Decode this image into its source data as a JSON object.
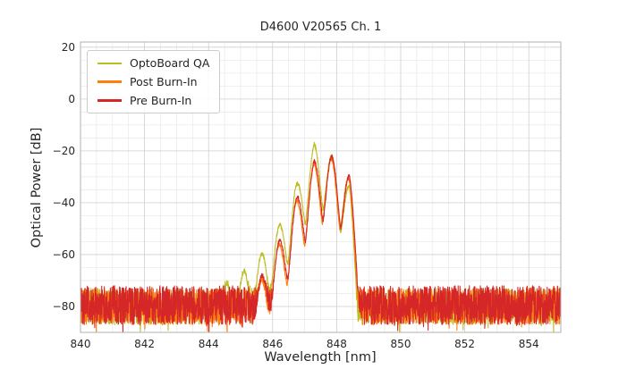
{
  "chart_data": {
    "type": "line",
    "title": "D4600 V20565 Ch. 1",
    "xlabel": "Wavelength [nm]",
    "ylabel": "Optical Power [dB]",
    "xlim": [
      840,
      855
    ],
    "ylim": [
      -90,
      22
    ],
    "xticks": [
      840,
      842,
      844,
      846,
      848,
      850,
      852,
      854
    ],
    "yticks": [
      20,
      0,
      -20,
      -40,
      -60,
      -80
    ],
    "grid": {
      "show_major": true,
      "show_minor": true,
      "x_minor_step": 0.5,
      "y_minor_step": 5
    },
    "legend": {
      "position": "upper-left",
      "entries": [
        "OptoBoard QA",
        "Post Burn-In",
        "Pre Burn-In"
      ]
    },
    "series": [
      {
        "name": "OptoBoard QA",
        "color": "#bcbd22",
        "noise_floor_db": {
          "mean": -80,
          "peak_to_peak": 14
        },
        "mode_spacing_nm": 0.55,
        "mode_phase_nm": 847.3,
        "notch_depth_db": 23,
        "peak_power_db": -17.5,
        "peak_wavelength_nm": 847.3,
        "envelope_points": [
          [
            843.9,
            -82
          ],
          [
            844.55,
            -72
          ],
          [
            845.1,
            -67
          ],
          [
            845.65,
            -60
          ],
          [
            846.2,
            -49
          ],
          [
            846.75,
            -33
          ],
          [
            847.3,
            -17.5
          ],
          [
            847.85,
            -22
          ],
          [
            848.4,
            -34
          ],
          [
            848.6,
            -55
          ],
          [
            848.72,
            -82
          ]
        ]
      },
      {
        "name": "Post Burn-In",
        "color": "#ff7f0e",
        "noise_floor_db": {
          "mean": -80,
          "peak_to_peak": 14
        },
        "mode_spacing_nm": 0.55,
        "mode_phase_nm": 847.28,
        "notch_depth_db": 24,
        "peak_power_db": -23,
        "peak_wavelength_nm": 847.85,
        "envelope_points": [
          [
            845.2,
            -82
          ],
          [
            845.65,
            -70
          ],
          [
            846.2,
            -56
          ],
          [
            846.75,
            -39
          ],
          [
            847.3,
            -25
          ],
          [
            847.85,
            -23
          ],
          [
            848.4,
            -31
          ],
          [
            848.62,
            -48
          ],
          [
            848.75,
            -72
          ],
          [
            848.82,
            -85
          ]
        ]
      },
      {
        "name": "Pre Burn-In",
        "color": "#d62728",
        "noise_floor_db": {
          "mean": -79.5,
          "peak_to_peak": 15
        },
        "mode_spacing_nm": 0.55,
        "mode_phase_nm": 847.3,
        "notch_depth_db": 24,
        "peak_power_db": -22,
        "peak_wavelength_nm": 847.85,
        "envelope_points": [
          [
            845.2,
            -82
          ],
          [
            845.65,
            -69
          ],
          [
            846.2,
            -55
          ],
          [
            846.75,
            -38
          ],
          [
            847.3,
            -24
          ],
          [
            847.85,
            -22
          ],
          [
            848.4,
            -30
          ],
          [
            848.62,
            -46
          ],
          [
            848.75,
            -70
          ],
          [
            848.82,
            -85
          ]
        ]
      }
    ]
  }
}
